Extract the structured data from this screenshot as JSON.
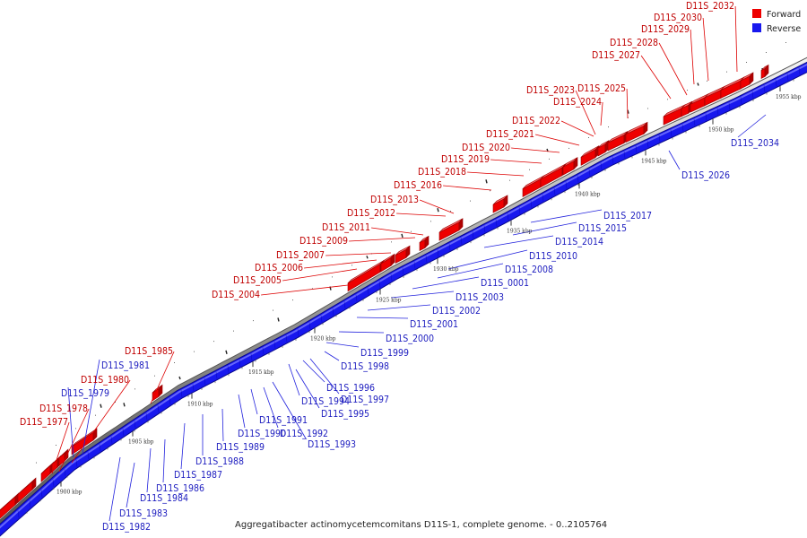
{
  "caption": "Aggregatibacter actinomycetemcomitans D11S-1, complete genome. - 0..2105764",
  "legend": [
    {
      "label": "Forward",
      "color": "#ee0000"
    },
    {
      "label": "Reverse",
      "color": "#1818ee"
    }
  ],
  "colors": {
    "forward": "#ee0000",
    "reverse": "#1818ee",
    "forward_text": "#c00000",
    "reverse_text": "#2020c0",
    "backbone": "#aaaaaa"
  },
  "ticks": [
    "1900 kbp",
    "1905 kbp",
    "1910 kbp",
    "1915 kbp",
    "1920 kbp",
    "1925 kbp",
    "1930 kbp",
    "1935 kbp",
    "1940 kbp",
    "1945 kbp",
    "1950 kbp",
    "1955 kbp"
  ],
  "forward_labels": [
    "D11S_1977",
    "D11S_1978",
    "D11S_1980",
    "D11S_1985",
    "D11S_2004",
    "D11S_2005",
    "D11S_2006",
    "D11S_2007",
    "D11S_2009",
    "D11S_2011",
    "D11S_2012",
    "D11S_2013",
    "D11S_2016",
    "D11S_2018",
    "D11S_2019",
    "D11S_2020",
    "D11S_2021",
    "D11S_2022",
    "D11S_2023",
    "D11S_2024",
    "D11S_2025",
    "D11S_2027",
    "D11S_2028",
    "D11S_2029",
    "D11S_2030",
    "D11S_2032"
  ],
  "reverse_labels": [
    "D11S_1979",
    "D11S_1981",
    "D11S_1982",
    "D11S_1983",
    "D11S_1984",
    "D11S_1986",
    "D11S_1987",
    "D11S_1988",
    "D11S_1989",
    "D11S_1990",
    "D11S_1991",
    "D11S_1992",
    "D11S_1993",
    "D11S_1994",
    "D11S_1995",
    "D11S_1996",
    "D11S_1997",
    "D11S_1998",
    "D11S_1999",
    "D11S_2000",
    "D11S_2001",
    "D11S_2002",
    "D11S_2003",
    "D11S_0001",
    "D11S_2008",
    "D11S_2010",
    "D11S_2014",
    "D11S_2015",
    "D11S_2017",
    "D11S_2026",
    "D11S_2034"
  ]
}
